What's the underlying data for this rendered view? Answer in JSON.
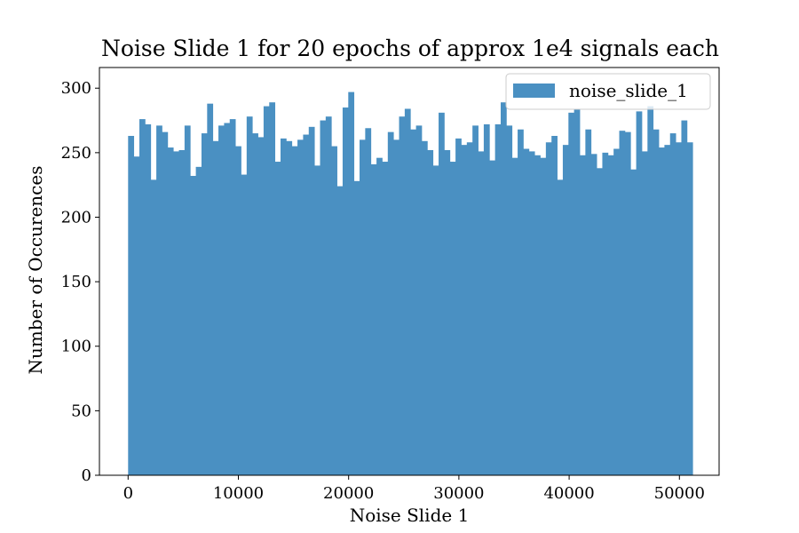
{
  "chart_data": {
    "type": "bar",
    "title": "Noise Slide 1 for 20 epochs of approx 1e4 signals each",
    "xlabel": "Noise Slide 1",
    "ylabel": "Number of Occurences",
    "xlim": [
      -2600,
      53600
    ],
    "ylim": [
      0,
      316
    ],
    "xticks": [
      0,
      10000,
      20000,
      30000,
      40000,
      50000
    ],
    "xtick_labels": [
      "0",
      "10000",
      "20000",
      "30000",
      "40000",
      "50000"
    ],
    "yticks": [
      0,
      50,
      100,
      150,
      200,
      250,
      300
    ],
    "ytick_labels": [
      "0",
      "50",
      "100",
      "150",
      "200",
      "250",
      "300"
    ],
    "bin_start": 0,
    "bin_width": 512,
    "grid": false,
    "legend_position": "upper right",
    "series": [
      {
        "name": "noise_slide_1",
        "color": "#4a90c2",
        "values": [
          263,
          247,
          276,
          272,
          229,
          271,
          266,
          254,
          251,
          252,
          271,
          232,
          239,
          265,
          288,
          259,
          271,
          273,
          276,
          255,
          233,
          278,
          265,
          262,
          286,
          289,
          243,
          261,
          259,
          255,
          260,
          264,
          270,
          240,
          275,
          278,
          255,
          224,
          285,
          297,
          228,
          260,
          269,
          241,
          246,
          243,
          266,
          260,
          278,
          284,
          268,
          271,
          259,
          252,
          240,
          281,
          252,
          243,
          261,
          256,
          258,
          271,
          251,
          272,
          244,
          272,
          289,
          271,
          246,
          268,
          253,
          251,
          248,
          246,
          258,
          263,
          229,
          256,
          281,
          284,
          248,
          268,
          249,
          238,
          250,
          248,
          253,
          267,
          266,
          237,
          282,
          251,
          286,
          268,
          254,
          256,
          265,
          258,
          275,
          258
        ]
      }
    ]
  }
}
